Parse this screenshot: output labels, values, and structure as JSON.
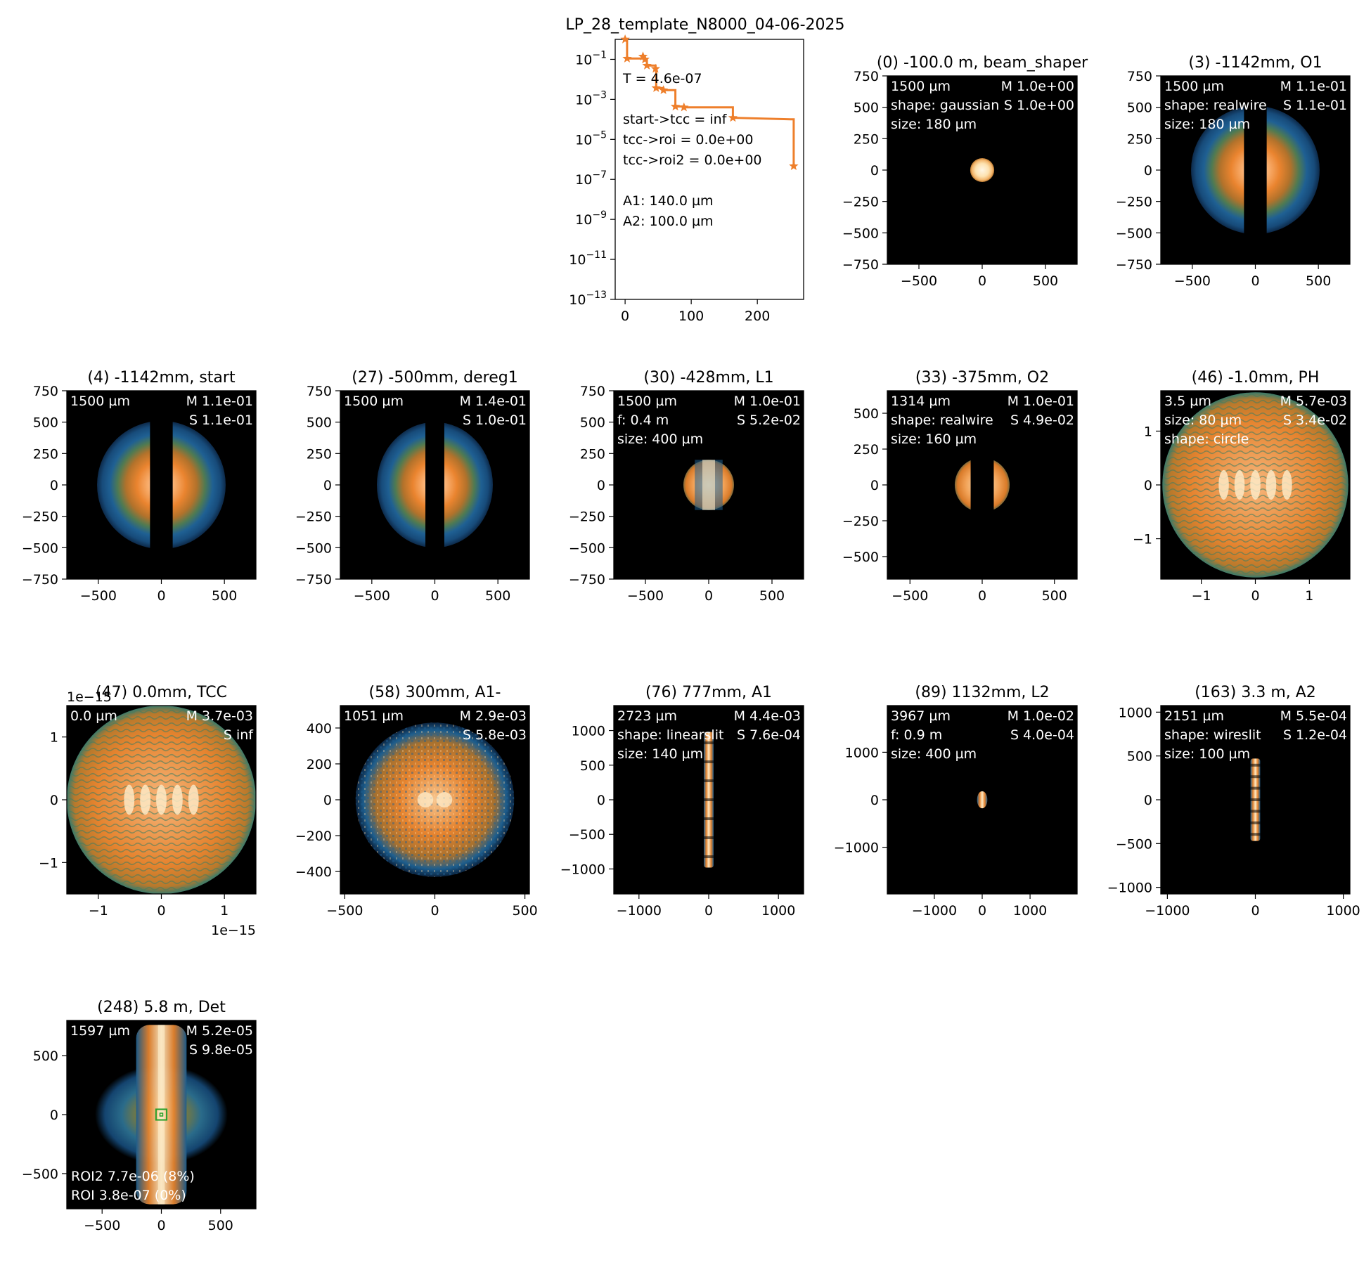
{
  "figure_title": "LP_28_template_N8000_04-06-2025",
  "colors": {
    "beam_dark": "#0d2a4a",
    "beam_blue": "#1d5d8c",
    "beam_orange": "#e5832e",
    "beam_core": "#fde9c4",
    "line": "#ee7f2b",
    "roi": "#2aa02a",
    "roi2_text": "#d2ffa8",
    "roi_text": "#ffb3a3"
  },
  "chart_data": [
    {
      "id": "transmission",
      "type": "line",
      "title": "",
      "yscale": "log",
      "ylim": [
        1e-13,
        1
      ],
      "xlim": [
        -15,
        270
      ],
      "x_ticks": [
        0,
        100,
        200
      ],
      "x_tick_labels": [
        "0",
        "100",
        "200"
      ],
      "y_ticks": [
        -13,
        -11,
        -9,
        -7,
        -5,
        -3,
        -1
      ],
      "y_tick_base": "10",
      "y_tick_exps": [
        "−13",
        "−11",
        "−9",
        "−7",
        "−5",
        "−3",
        "−1"
      ],
      "x": [
        0,
        3,
        3,
        27,
        27,
        30,
        30,
        33,
        33,
        46,
        46,
        47,
        47,
        58,
        58,
        76,
        76,
        89,
        89,
        163,
        163,
        250,
        255,
        255
      ],
      "y": [
        1,
        1,
        0.11,
        0.11,
        0.14,
        0.14,
        0.1,
        0.1,
        0.049,
        0.049,
        0.034,
        0.034,
        0.0037,
        0.0037,
        0.0029,
        0.0029,
        0.00044,
        0.00044,
        0.0004,
        0.0004,
        0.00012,
        0.0001,
        0.0001,
        4.6e-07
      ],
      "markers_x": [
        0,
        3,
        27,
        30,
        33,
        46,
        47,
        58,
        76,
        89,
        163,
        255
      ],
      "markers_y": [
        1,
        0.11,
        0.14,
        0.1,
        0.049,
        0.034,
        0.0037,
        0.0029,
        0.00044,
        0.0004,
        0.00012,
        4.6e-07
      ],
      "annotations": [
        "T = 4.6e-07",
        "",
        "start->tcc = inf",
        "tcc->roi = 0.0e+00",
        "tcc->roi2 = 0.0e+00",
        "",
        "A1: 140.0 µm",
        "A2: 100.0 µm"
      ]
    },
    {
      "id": "p0",
      "type": "heatmap",
      "title": "(0) -100.0 m, beam_shaper",
      "xlim": [
        -750,
        750
      ],
      "ylim": [
        -750,
        750
      ],
      "x_ticks": [
        -500,
        0,
        500
      ],
      "x_tick_labels": [
        "−500",
        "0",
        "500"
      ],
      "y_ticks": [
        750,
        500,
        250,
        0,
        -250,
        -500,
        -750
      ],
      "y_tick_labels": [
        "750",
        "500",
        "250",
        "0",
        "−250",
        "−500",
        "−750"
      ],
      "overlay_left": [
        "1500 µm",
        "shape: gaussian",
        "size: 180 µm"
      ],
      "overlay_right": [
        "M 1.0e+00",
        "S 1.0e+00"
      ],
      "beam": {
        "kind": "disc",
        "rx": 95,
        "ry": 95
      }
    },
    {
      "id": "p3",
      "type": "heatmap",
      "title": "(3) -1142mm, O1",
      "xlim": [
        -750,
        750
      ],
      "ylim": [
        -750,
        750
      ],
      "x_ticks": [
        -500,
        0,
        500
      ],
      "x_tick_labels": [
        "−500",
        "0",
        "500"
      ],
      "y_ticks": [
        750,
        500,
        250,
        0,
        -250,
        -500,
        -750
      ],
      "y_tick_labels": [
        "750",
        "500",
        "250",
        "0",
        "−250",
        "−500",
        "−750"
      ],
      "overlay_left": [
        "1500 µm",
        "shape: realwire",
        "size: 180 µm"
      ],
      "overlay_right": [
        "M 1.1e-01",
        "S 1.1e-01"
      ],
      "beam": {
        "kind": "rings",
        "rx": 510,
        "ry": 510,
        "slit": 90
      }
    },
    {
      "id": "p4",
      "type": "heatmap",
      "title": "(4) -1142mm, start",
      "xlim": [
        -750,
        750
      ],
      "ylim": [
        -750,
        750
      ],
      "x_ticks": [
        -500,
        0,
        500
      ],
      "x_tick_labels": [
        "−500",
        "0",
        "500"
      ],
      "y_ticks": [
        750,
        500,
        250,
        0,
        -250,
        -500,
        -750
      ],
      "y_tick_labels": [
        "750",
        "500",
        "250",
        "0",
        "−250",
        "−500",
        "−750"
      ],
      "overlay_left": [
        "1500 µm"
      ],
      "overlay_right": [
        "M 1.1e-01",
        "S 1.1e-01"
      ],
      "beam": {
        "kind": "rings",
        "rx": 510,
        "ry": 510,
        "slit": 90
      }
    },
    {
      "id": "p27",
      "type": "heatmap",
      "title": "(27) -500mm, dereg1",
      "xlim": [
        -750,
        750
      ],
      "ylim": [
        -750,
        750
      ],
      "x_ticks": [
        -500,
        0,
        500
      ],
      "x_tick_labels": [
        "−500",
        "0",
        "500"
      ],
      "y_ticks": [
        750,
        500,
        250,
        0,
        -250,
        -500,
        -750
      ],
      "y_tick_labels": [
        "750",
        "500",
        "250",
        "0",
        "−250",
        "−500",
        "−750"
      ],
      "overlay_left": [
        "1500 µm"
      ],
      "overlay_right": [
        "M 1.4e-01",
        "S 1.0e-01"
      ],
      "beam": {
        "kind": "rings",
        "rx": 460,
        "ry": 500,
        "slit": 75
      }
    },
    {
      "id": "p30",
      "type": "heatmap",
      "title": "(30) -428mm, L1",
      "xlim": [
        -750,
        750
      ],
      "ylim": [
        -750,
        750
      ],
      "x_ticks": [
        -500,
        0,
        500
      ],
      "x_tick_labels": [
        "−500",
        "0",
        "500"
      ],
      "y_ticks": [
        750,
        500,
        250,
        0,
        -250,
        -500,
        -750
      ],
      "y_tick_labels": [
        "750",
        "500",
        "250",
        "0",
        "−250",
        "−500",
        "−750"
      ],
      "overlay_left": [
        "1500 µm",
        "f: 0.4 m",
        "size: 400 µm"
      ],
      "overlay_right": [
        "M 1.0e-01",
        "S 5.2e-02"
      ],
      "beam": {
        "kind": "lens",
        "rx": 200,
        "ry": 200
      }
    },
    {
      "id": "p33",
      "type": "heatmap",
      "title": "(33) -375mm, O2",
      "xlim": [
        -657,
        657
      ],
      "ylim": [
        -657,
        657
      ],
      "x_ticks": [
        -500,
        0,
        500
      ],
      "x_tick_labels": [
        "−500",
        "0",
        "500"
      ],
      "y_ticks": [
        500,
        250,
        0,
        -250,
        -500
      ],
      "y_tick_labels": [
        "500",
        "250",
        "0",
        "−250",
        "−500"
      ],
      "overlay_left": [
        "1314 µm",
        "shape: realwire",
        "size: 160 µm"
      ],
      "overlay_right": [
        "M 1.0e-01",
        "S 4.9e-02"
      ],
      "beam": {
        "kind": "slitdisc",
        "rx": 190,
        "ry": 190,
        "slit": 80
      }
    },
    {
      "id": "p46",
      "type": "heatmap",
      "title": "(46) -1.0mm, PH",
      "xlim": [
        -1.75,
        1.75
      ],
      "ylim": [
        -1.75,
        1.75
      ],
      "x_ticks": [
        -1,
        0,
        1
      ],
      "x_tick_labels": [
        "−1",
        "0",
        "1"
      ],
      "y_ticks": [
        1,
        0,
        -1
      ],
      "y_tick_labels": [
        "1",
        "0",
        "−1"
      ],
      "overlay_left": [
        "3.5 µm",
        "size: 80 µm",
        "shape: circle"
      ],
      "overlay_right": [
        "M 5.7e-03",
        "S 3.4e-02"
      ],
      "beam": {
        "kind": "speckle",
        "rx": 1.72,
        "ry": 1.72
      }
    },
    {
      "id": "p47",
      "type": "heatmap",
      "title": "(47) 0.0mm, TCC",
      "xlim": [
        -1.5,
        1.5
      ],
      "ylim": [
        -1.5,
        1.5
      ],
      "x_ticks": [
        -1,
        0,
        1
      ],
      "x_tick_labels": [
        "−1",
        "0",
        "1"
      ],
      "y_ticks": [
        1,
        0,
        -1
      ],
      "y_tick_labels": [
        "1",
        "0",
        "−1"
      ],
      "x_offset_label": "1e−15",
      "y_offset_label": "1e−15",
      "overlay_left": [
        "0.0 µm"
      ],
      "overlay_right": [
        "M 3.7e-03",
        "S inf"
      ],
      "beam": {
        "kind": "speckle",
        "rx": 1.5,
        "ry": 1.5
      }
    },
    {
      "id": "p58",
      "type": "heatmap",
      "title": "(58) 300mm, A1-",
      "xlim": [
        -525,
        525
      ],
      "ylim": [
        -525,
        525
      ],
      "x_ticks": [
        -500,
        0,
        500
      ],
      "x_tick_labels": [
        "−500",
        "0",
        "500"
      ],
      "y_ticks": [
        400,
        200,
        0,
        -200,
        -400
      ],
      "y_tick_labels": [
        "400",
        "200",
        "0",
        "−200",
        "−400"
      ],
      "overlay_left": [
        "1051 µm"
      ],
      "overlay_right": [
        "M 2.9e-03",
        "S 5.8e-03"
      ],
      "beam": {
        "kind": "fuzzy",
        "rx": 440,
        "ry": 430
      }
    },
    {
      "id": "p76",
      "type": "heatmap",
      "title": "(76) 777mm, A1",
      "xlim": [
        -1361,
        1361
      ],
      "ylim": [
        -1361,
        1361
      ],
      "x_ticks": [
        -1000,
        0,
        1000
      ],
      "x_tick_labels": [
        "−1000",
        "0",
        "1000"
      ],
      "y_ticks": [
        1000,
        500,
        0,
        -500,
        -1000
      ],
      "y_tick_labels": [
        "1000",
        "500",
        "0",
        "−500",
        "−1000"
      ],
      "overlay_left": [
        "2723 µm",
        "shape: linearslit",
        "size: 140 µm"
      ],
      "overlay_right": [
        "M 4.4e-03",
        "S 7.6e-04"
      ],
      "beam": {
        "kind": "vstripe",
        "rx": 70,
        "ry": 980
      }
    },
    {
      "id": "p89",
      "type": "heatmap",
      "title": "(89) 1132mm, L2",
      "xlim": [
        -1983,
        1983
      ],
      "ylim": [
        -1983,
        1983
      ],
      "x_ticks": [
        -1000,
        0,
        1000
      ],
      "x_tick_labels": [
        "−1000",
        "0",
        "1000"
      ],
      "y_ticks": [
        1000,
        0,
        -1000
      ],
      "y_tick_labels": [
        "1000",
        "0",
        "−1000"
      ],
      "overlay_left": [
        "3967 µm",
        "f: 0.9 m",
        "size: 400 µm"
      ],
      "overlay_right": [
        "M 1.0e-02",
        "S 4.0e-04"
      ],
      "beam": {
        "kind": "small",
        "rx": 180,
        "ry": 180
      }
    },
    {
      "id": "p163",
      "type": "heatmap",
      "title": "(163) 3.3 m, A2",
      "xlim": [
        -1075,
        1075
      ],
      "ylim": [
        -1075,
        1075
      ],
      "x_ticks": [
        -1000,
        0,
        1000
      ],
      "x_tick_labels": [
        "−1000",
        "0",
        "1000"
      ],
      "y_ticks": [
        1000,
        500,
        0,
        -500,
        -1000
      ],
      "y_tick_labels": [
        "1000",
        "500",
        "0",
        "−500",
        "−1000"
      ],
      "overlay_left": [
        "2151 µm",
        "shape: wireslit",
        "size: 100 µm"
      ],
      "overlay_right": [
        "M 5.5e-04",
        "S 1.2e-04"
      ],
      "beam": {
        "kind": "vstripe",
        "rx": 55,
        "ry": 470
      }
    },
    {
      "id": "p248",
      "type": "heatmap",
      "title": "(248) 5.8 m, Det",
      "xlim": [
        -798,
        798
      ],
      "ylim": [
        -798,
        798
      ],
      "x_ticks": [
        -500,
        0,
        500
      ],
      "x_tick_labels": [
        "−500",
        "0",
        "500"
      ],
      "y_ticks": [
        500,
        0,
        -500
      ],
      "y_tick_labels": [
        "500",
        "0",
        "−500"
      ],
      "overlay_left": [
        "1597 µm"
      ],
      "overlay_right": [
        "M 5.2e-05",
        "S 9.8e-05"
      ],
      "overlay_bottom": [
        {
          "text": "ROI2 7.7e-06 (8%)",
          "color": "#d2ffa8"
        },
        {
          "text": "ROI 3.8e-07 (0%)",
          "color": "#ffb3a3"
        }
      ],
      "beam": {
        "kind": "det",
        "rx": 560,
        "ry": 760
      },
      "roi_box": {
        "x": 0,
        "y": 0,
        "half": 45
      }
    }
  ]
}
